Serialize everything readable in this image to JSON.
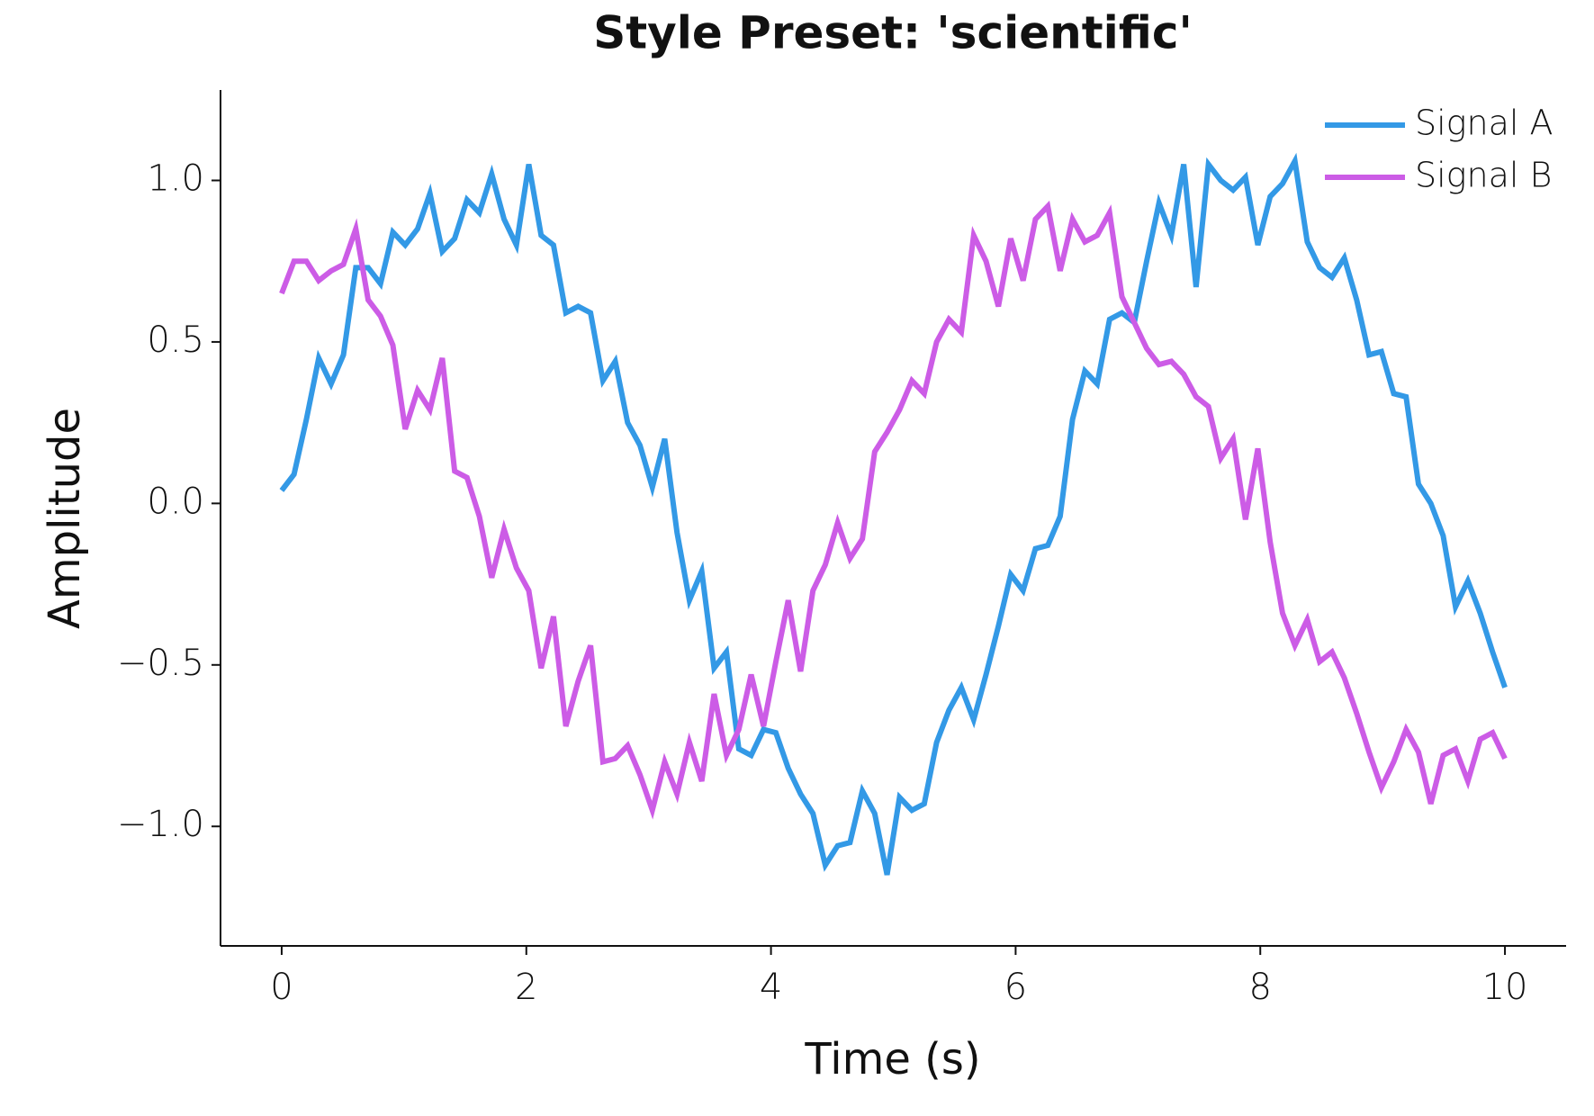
{
  "chart_data": {
    "type": "line",
    "title": "Style Preset: 'scientific'",
    "xlabel": "Time (s)",
    "ylabel": "Amplitude",
    "x": [
      0,
      0.101,
      0.202,
      0.303,
      0.404,
      0.505,
      0.606,
      0.707,
      0.808,
      0.909,
      1.01,
      1.111,
      1.212,
      1.313,
      1.414,
      1.515,
      1.616,
      1.717,
      1.818,
      1.919,
      2.02,
      2.121,
      2.222,
      2.323,
      2.424,
      2.525,
      2.626,
      2.727,
      2.828,
      2.929,
      3.03,
      3.131,
      3.232,
      3.333,
      3.434,
      3.535,
      3.636,
      3.737,
      3.838,
      3.939,
      4.04,
      4.141,
      4.242,
      4.343,
      4.444,
      4.545,
      4.646,
      4.747,
      4.848,
      4.949,
      5.051,
      5.152,
      5.253,
      5.354,
      5.455,
      5.556,
      5.657,
      5.758,
      5.859,
      5.96,
      6.061,
      6.162,
      6.263,
      6.364,
      6.465,
      6.566,
      6.667,
      6.768,
      6.869,
      6.97,
      7.071,
      7.172,
      7.273,
      7.374,
      7.475,
      7.576,
      7.677,
      7.778,
      7.879,
      7.98,
      8.081,
      8.182,
      8.283,
      8.384,
      8.485,
      8.586,
      8.687,
      8.788,
      8.889,
      8.99,
      9.091,
      9.192,
      9.293,
      9.394,
      9.495,
      9.596,
      9.697,
      9.798,
      9.899,
      10
    ],
    "series": [
      {
        "name": "Signal A",
        "color": "#3399e6",
        "values": [
          0.04,
          0.09,
          0.26,
          0.45,
          0.37,
          0.46,
          0.73,
          0.73,
          0.68,
          0.84,
          0.8,
          0.85,
          0.96,
          0.78,
          0.82,
          0.94,
          0.9,
          1.02,
          0.88,
          0.8,
          1.05,
          0.83,
          0.8,
          0.59,
          0.61,
          0.59,
          0.38,
          0.44,
          0.25,
          0.18,
          0.05,
          0.2,
          -0.09,
          -0.3,
          -0.21,
          -0.51,
          -0.46,
          -0.76,
          -0.78,
          -0.7,
          -0.71,
          -0.82,
          -0.9,
          -0.96,
          -1.12,
          -1.06,
          -1.05,
          -0.89,
          -0.96,
          -1.15,
          -0.91,
          -0.95,
          -0.93,
          -0.74,
          -0.64,
          -0.57,
          -0.67,
          -0.53,
          -0.38,
          -0.22,
          -0.27,
          -0.14,
          -0.13,
          -0.04,
          0.26,
          0.41,
          0.37,
          0.57,
          0.59,
          0.56,
          0.75,
          0.93,
          0.83,
          1.05,
          0.67,
          1.05,
          1.0,
          0.97,
          1.01,
          0.8,
          0.95,
          0.99,
          1.06,
          0.81,
          0.73,
          0.7,
          0.76,
          0.63,
          0.46,
          0.47,
          0.34,
          0.33,
          0.06,
          0.0,
          -0.1,
          -0.32,
          -0.24,
          -0.34,
          -0.46,
          -0.57
        ]
      },
      {
        "name": "Signal B",
        "color": "#cc5ce6",
        "values": [
          0.65,
          0.75,
          0.75,
          0.69,
          0.72,
          0.74,
          0.85,
          0.63,
          0.58,
          0.49,
          0.23,
          0.35,
          0.29,
          0.45,
          0.1,
          0.08,
          -0.04,
          -0.23,
          -0.08,
          -0.2,
          -0.27,
          -0.51,
          -0.35,
          -0.69,
          -0.55,
          -0.44,
          -0.8,
          -0.79,
          -0.75,
          -0.84,
          -0.95,
          -0.8,
          -0.9,
          -0.74,
          -0.86,
          -0.59,
          -0.78,
          -0.7,
          -0.53,
          -0.69,
          -0.49,
          -0.3,
          -0.52,
          -0.27,
          -0.19,
          -0.06,
          -0.17,
          -0.11,
          0.16,
          0.22,
          0.29,
          0.38,
          0.34,
          0.5,
          0.57,
          0.53,
          0.83,
          0.75,
          0.61,
          0.82,
          0.69,
          0.88,
          0.92,
          0.72,
          0.88,
          0.81,
          0.83,
          0.9,
          0.64,
          0.56,
          0.48,
          0.43,
          0.44,
          0.4,
          0.33,
          0.3,
          0.14,
          0.2,
          -0.05,
          0.17,
          -0.12,
          -0.34,
          -0.44,
          -0.36,
          -0.49,
          -0.46,
          -0.54,
          -0.65,
          -0.77,
          -0.88,
          -0.8,
          -0.7,
          -0.77,
          -0.93,
          -0.78,
          -0.76,
          -0.86,
          -0.73,
          -0.71,
          -0.79
        ]
      }
    ],
    "xlim": [
      -0.5,
      10.5
    ],
    "ylim": [
      -1.37,
      1.28
    ],
    "xticks": [
      0,
      2,
      4,
      6,
      8,
      10
    ],
    "yticks": [
      {
        "value": -1.0,
        "label": "−1.0"
      },
      {
        "value": -0.5,
        "label": "−0.5"
      },
      {
        "value": 0.0,
        "label": "0.0"
      },
      0.5,
      {
        "value": 1.0,
        "label": "1.0"
      }
    ],
    "grid": false,
    "legend": "upper right"
  }
}
